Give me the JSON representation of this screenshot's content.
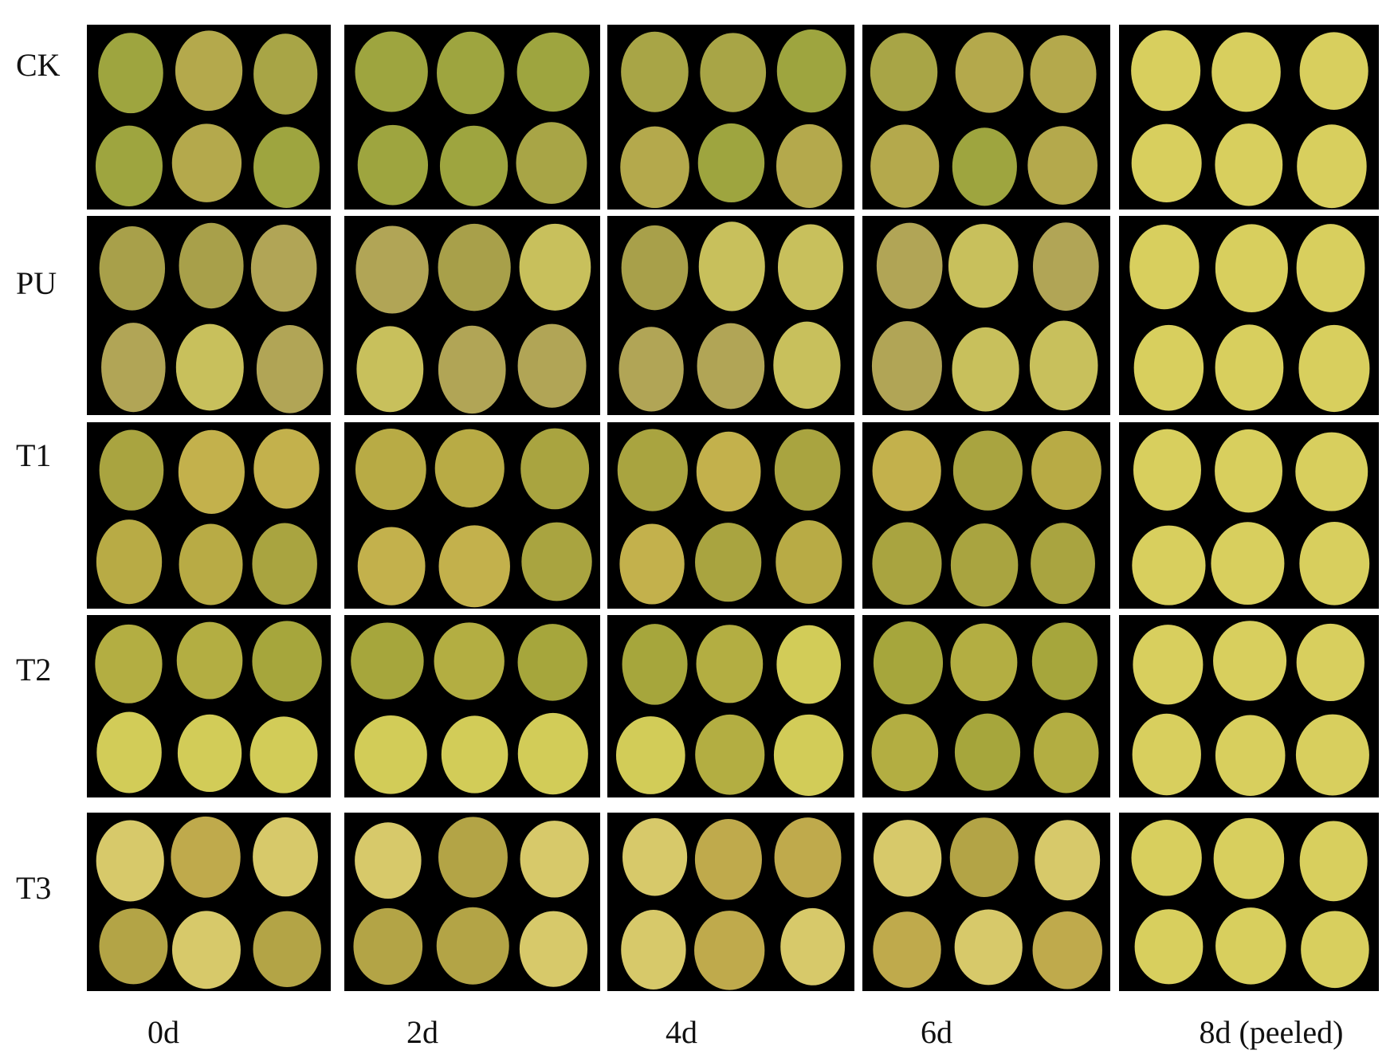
{
  "rows": [
    "CK",
    "PU",
    "T1",
    "T2",
    "T3"
  ],
  "columns": [
    "0d",
    "2d",
    "4d",
    "6d",
    "8d (peeled)"
  ]
}
